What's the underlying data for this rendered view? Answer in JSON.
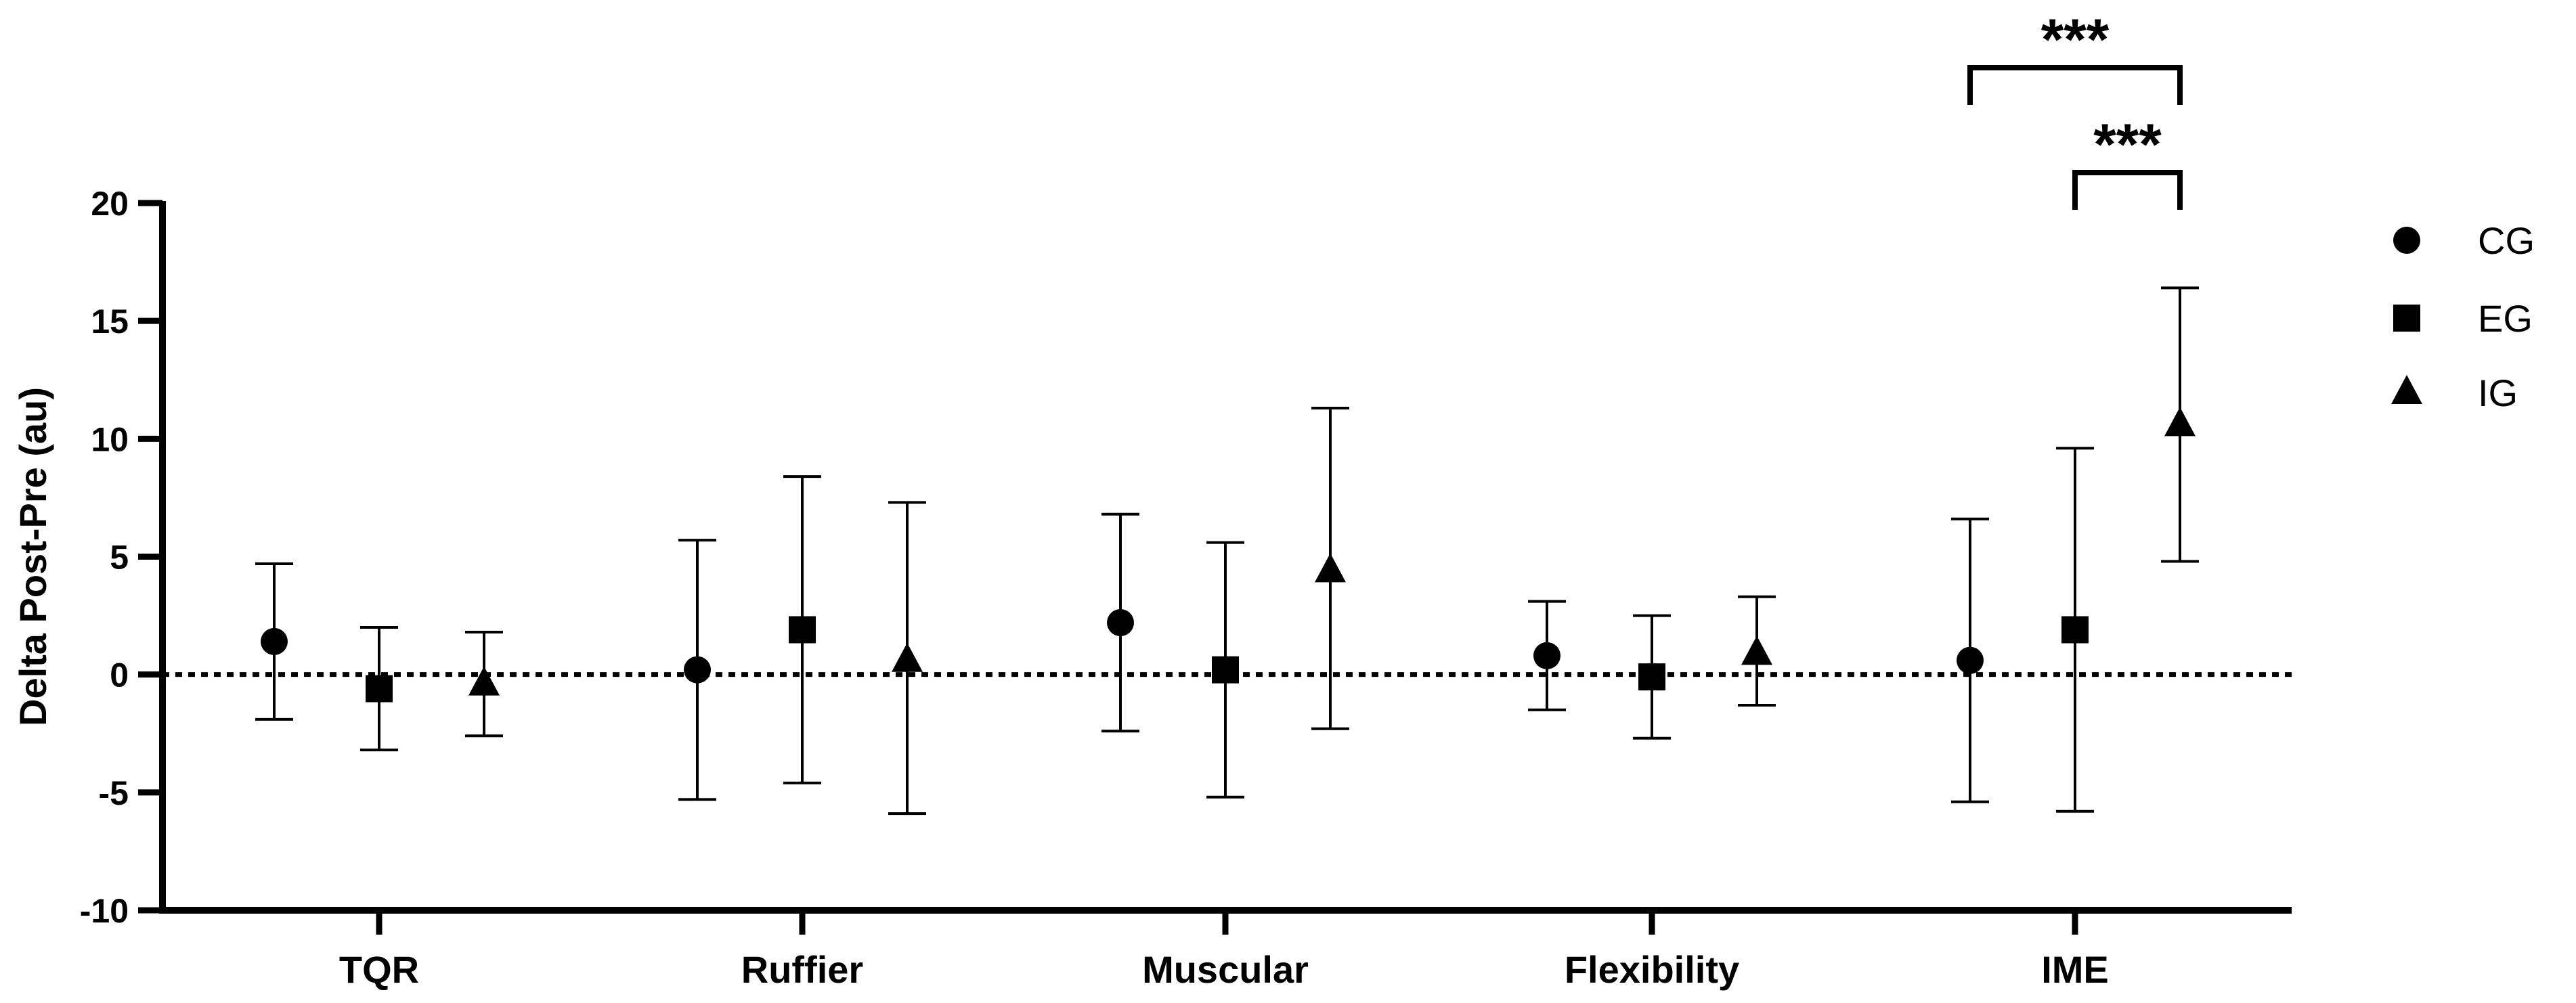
{
  "chart_data": {
    "type": "scatter",
    "title": "",
    "xlabel": "",
    "ylabel": "Delta Post-Pre (au)",
    "ylim": [
      -10,
      20
    ],
    "yticks": [
      20,
      15,
      10,
      5,
      0,
      -5,
      -10
    ],
    "ytick_labels": [
      "20",
      "15",
      "10",
      "5",
      "0",
      "-5",
      "-10"
    ],
    "categories": [
      "TQR",
      "Ruffier",
      "Muscular",
      "Flexibility",
      "IME"
    ],
    "reference_line": 0,
    "legend_position": "right",
    "series": [
      {
        "name": "CG",
        "marker": "circle",
        "values": [
          1.4,
          0.2,
          2.2,
          0.8,
          0.6
        ],
        "lower": [
          -1.9,
          -5.3,
          -2.4,
          -1.5,
          -5.4
        ],
        "upper": [
          4.7,
          5.7,
          6.8,
          3.1,
          6.6
        ]
      },
      {
        "name": "EG",
        "marker": "square",
        "values": [
          -0.6,
          1.9,
          0.2,
          -0.1,
          1.9
        ],
        "lower": [
          -3.2,
          -4.6,
          -5.2,
          -2.7,
          -5.8
        ],
        "upper": [
          2.0,
          8.4,
          5.6,
          2.5,
          9.6
        ]
      },
      {
        "name": "IG",
        "marker": "triangle",
        "values": [
          -0.4,
          0.6,
          4.4,
          0.9,
          10.6
        ],
        "lower": [
          -2.6,
          -5.9,
          -2.3,
          -1.3,
          4.8
        ],
        "upper": [
          1.8,
          7.3,
          11.3,
          3.3,
          16.4
        ]
      }
    ],
    "annotations": [
      {
        "category": "IME",
        "from": "CG",
        "to": "IG",
        "label": "***"
      },
      {
        "category": "IME",
        "from": "EG",
        "to": "IG",
        "label": "***"
      }
    ],
    "colors": {
      "ink": "#000000",
      "background": "#ffffff"
    }
  }
}
